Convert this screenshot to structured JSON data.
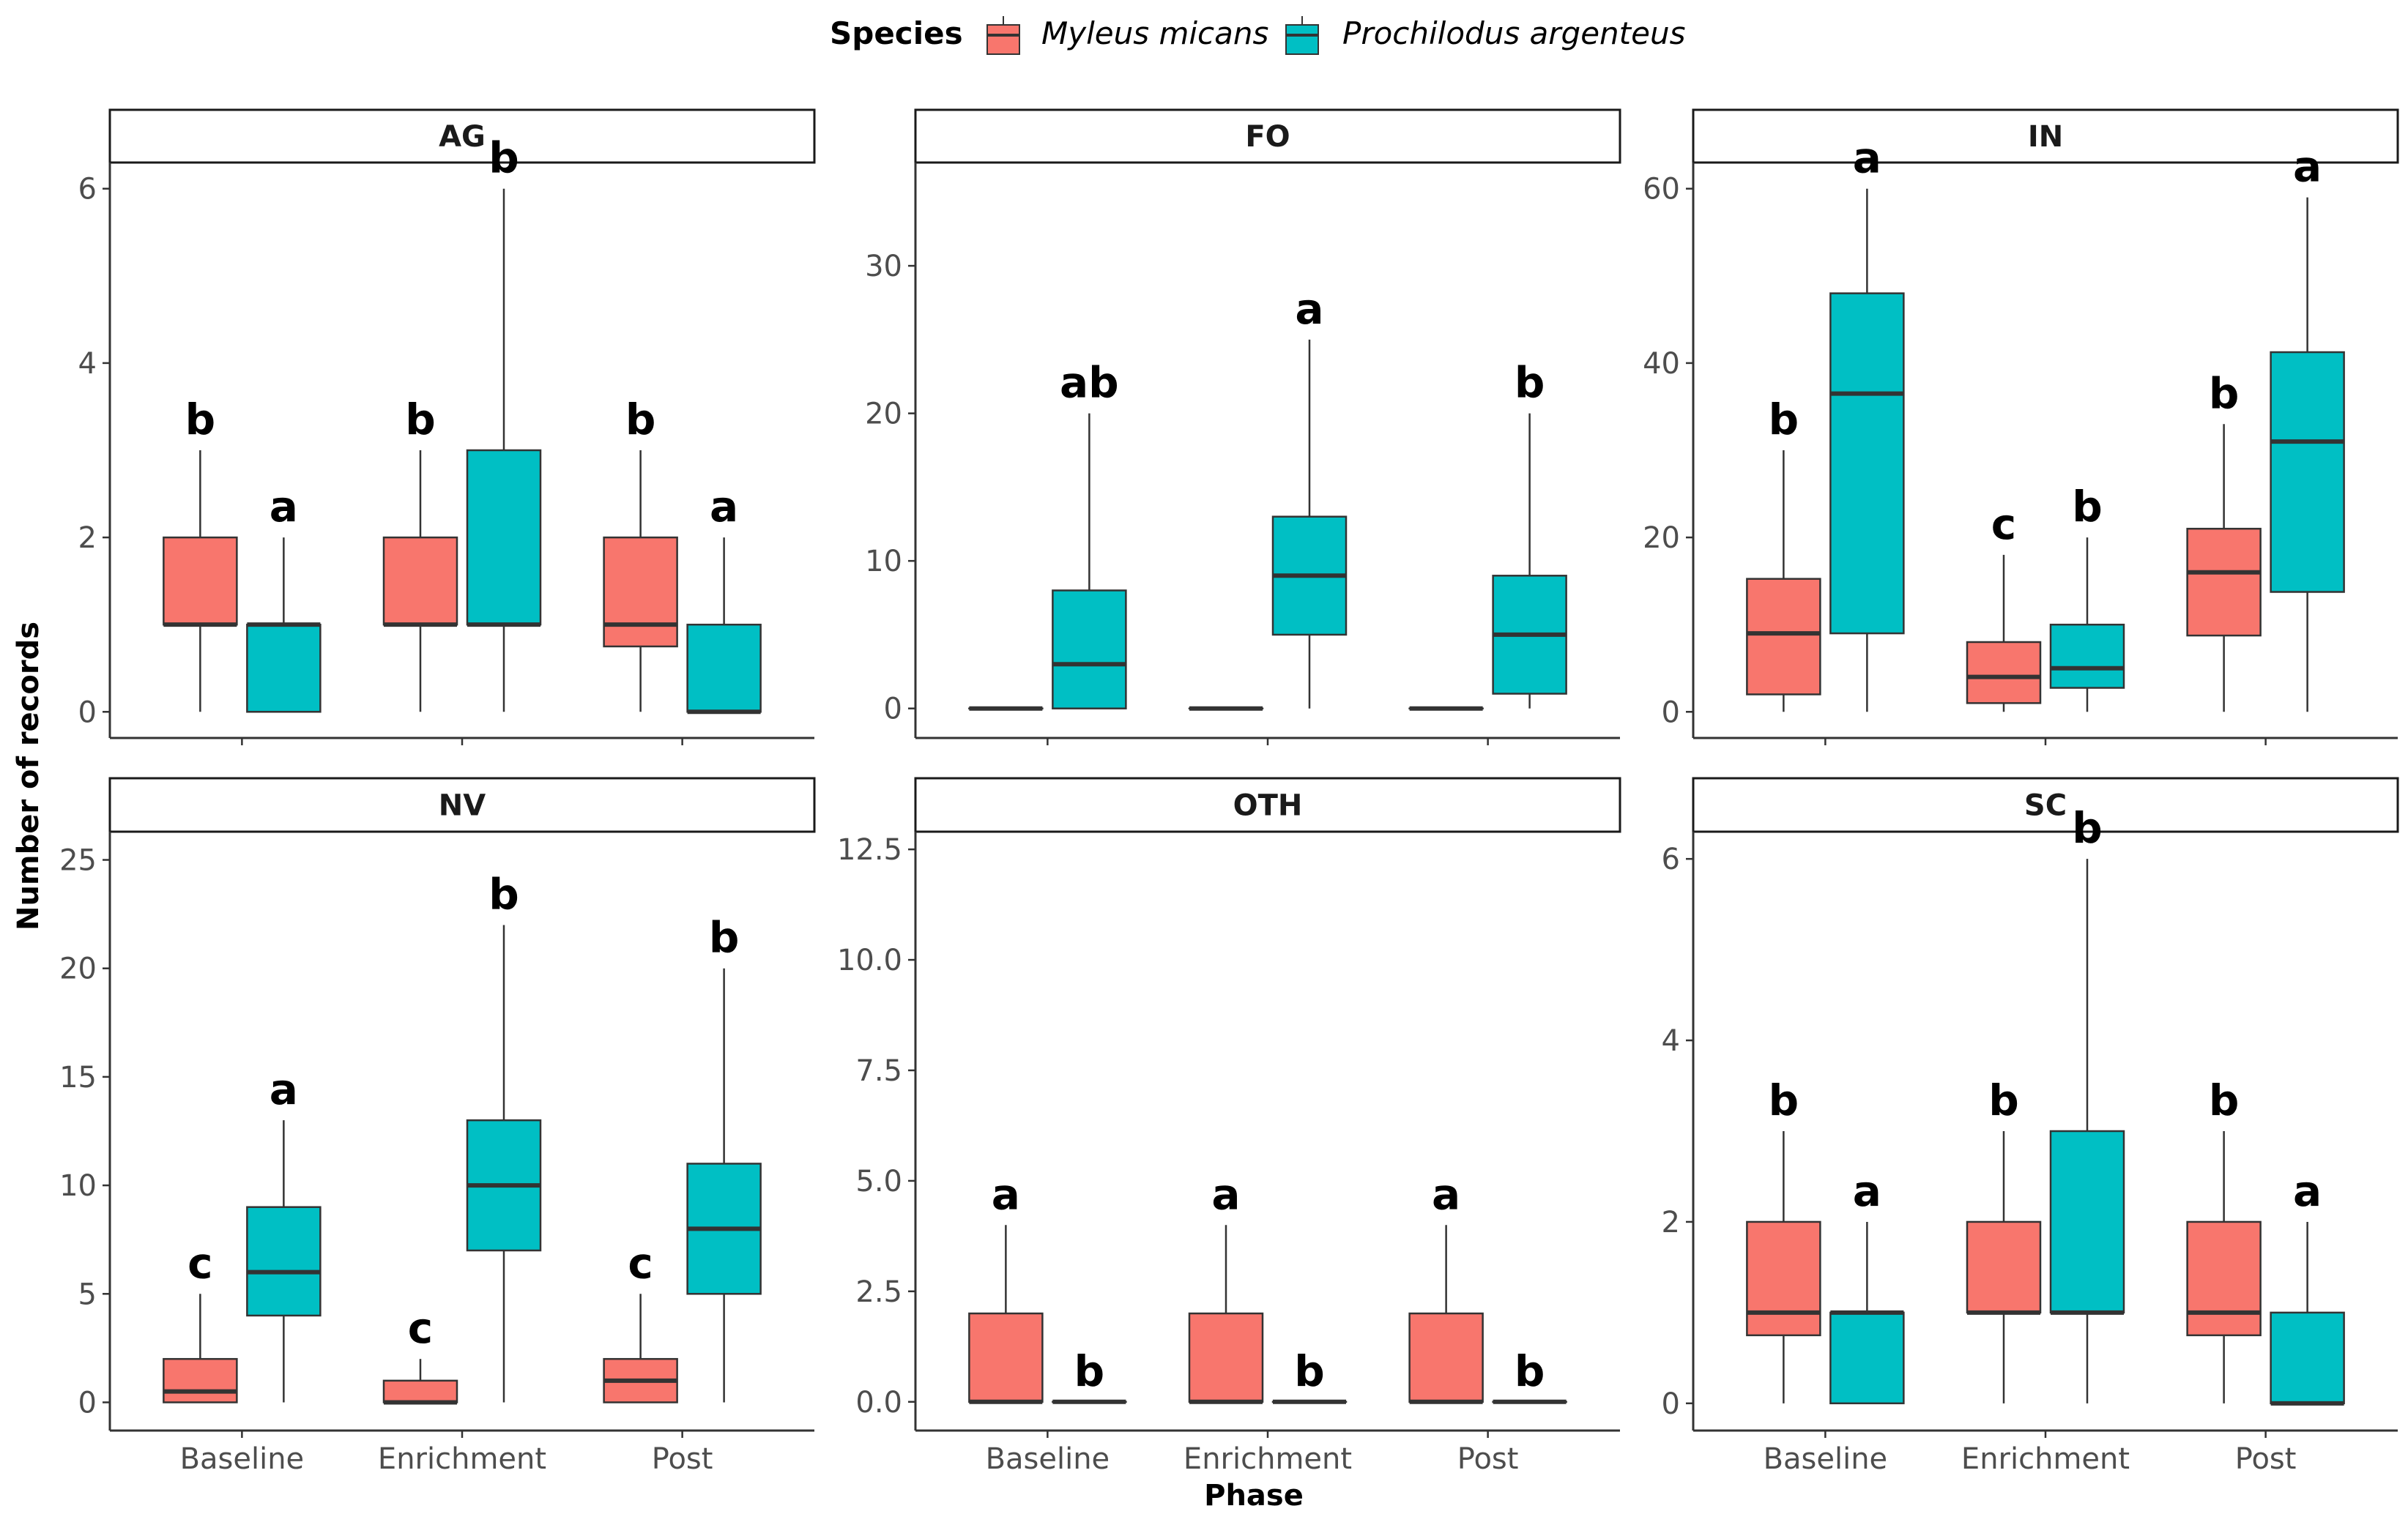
{
  "chart_data": {
    "type": "boxplot",
    "xlabel": "Phase",
    "ylabel": "Number of records",
    "categories": [
      "Baseline",
      "Enrichment",
      "Post"
    ],
    "legend": {
      "title": "Species",
      "position": "top",
      "entries": [
        {
          "name": "Myleus micans",
          "color": "#F8766D"
        },
        {
          "name": "Prochilodus argenteus",
          "color": "#00BFC4"
        }
      ]
    },
    "panels": [
      {
        "name": "AG",
        "ylim": [
          -0.3,
          6.3
        ],
        "yticks": [
          0,
          2,
          4,
          6
        ],
        "tick_labels": [
          "0",
          "2",
          "4",
          "6"
        ],
        "groups": [
          {
            "category": "Baseline",
            "boxes": [
              {
                "species": "Myleus micans",
                "min": 0,
                "q1": 1,
                "median": 1,
                "q3": 2,
                "max": 3,
                "letter": "b"
              },
              {
                "species": "Prochilodus argenteus",
                "min": 0,
                "q1": 0,
                "median": 1,
                "q3": 1,
                "max": 2,
                "letter": "a"
              }
            ]
          },
          {
            "category": "Enrichment",
            "boxes": [
              {
                "species": "Myleus micans",
                "min": 0,
                "q1": 1,
                "median": 1,
                "q3": 2,
                "max": 3,
                "letter": "b"
              },
              {
                "species": "Prochilodus argenteus",
                "min": 0,
                "q1": 1,
                "median": 1,
                "q3": 3,
                "max": 6,
                "letter": "b"
              }
            ]
          },
          {
            "category": "Post",
            "boxes": [
              {
                "species": "Myleus micans",
                "min": 0,
                "q1": 0.75,
                "median": 1,
                "q3": 2,
                "max": 3,
                "letter": "b"
              },
              {
                "species": "Prochilodus argenteus",
                "min": 0,
                "q1": 0,
                "median": 0,
                "q3": 1,
                "max": 2,
                "letter": "a"
              }
            ]
          }
        ]
      },
      {
        "name": "FO",
        "ylim": [
          -2,
          37
        ],
        "yticks": [
          0,
          10,
          20,
          30
        ],
        "tick_labels": [
          "0",
          "10",
          "20",
          "30"
        ],
        "groups": [
          {
            "category": "Baseline",
            "boxes": [
              {
                "species": "Myleus micans",
                "min": 0,
                "q1": 0,
                "median": 0,
                "q3": 0,
                "max": 0,
                "letter": ""
              },
              {
                "species": "Prochilodus argenteus",
                "min": 0,
                "q1": 0,
                "median": 3,
                "q3": 8,
                "max": 20,
                "letter": "ab"
              }
            ]
          },
          {
            "category": "Enrichment",
            "boxes": [
              {
                "species": "Myleus micans",
                "min": 0,
                "q1": 0,
                "median": 0,
                "q3": 0,
                "max": 0,
                "letter": ""
              },
              {
                "species": "Prochilodus argenteus",
                "min": 0,
                "q1": 5,
                "median": 9,
                "q3": 13,
                "max": 25,
                "letter": "a"
              }
            ]
          },
          {
            "category": "Post",
            "boxes": [
              {
                "species": "Myleus micans",
                "min": 0,
                "q1": 0,
                "median": 0,
                "q3": 0,
                "max": 0,
                "letter": ""
              },
              {
                "species": "Prochilodus argenteus",
                "min": 0,
                "q1": 1,
                "median": 5,
                "q3": 9,
                "max": 20,
                "letter": "b"
              }
            ]
          }
        ]
      },
      {
        "name": "IN",
        "ylim": [
          -3,
          63
        ],
        "yticks": [
          0,
          20,
          40,
          60
        ],
        "tick_labels": [
          "0",
          "20",
          "40",
          "60"
        ],
        "groups": [
          {
            "category": "Baseline",
            "boxes": [
              {
                "species": "Myleus micans",
                "min": 0,
                "q1": 2,
                "median": 9,
                "q3": 15.25,
                "max": 30,
                "letter": "b"
              },
              {
                "species": "Prochilodus argenteus",
                "min": 0,
                "q1": 9,
                "median": 36.5,
                "q3": 48,
                "max": 60,
                "letter": "a"
              }
            ]
          },
          {
            "category": "Enrichment",
            "boxes": [
              {
                "species": "Myleus micans",
                "min": 0,
                "q1": 1,
                "median": 4,
                "q3": 8,
                "max": 18,
                "letter": "c"
              },
              {
                "species": "Prochilodus argenteus",
                "min": 0,
                "q1": 2.75,
                "median": 5,
                "q3": 10,
                "max": 20,
                "letter": "b"
              }
            ]
          },
          {
            "category": "Post",
            "boxes": [
              {
                "species": "Myleus micans",
                "min": 0,
                "q1": 8.75,
                "median": 16,
                "q3": 21,
                "max": 33,
                "letter": "b"
              },
              {
                "species": "Prochilodus argenteus",
                "min": 0,
                "q1": 13.75,
                "median": 31,
                "q3": 41.25,
                "max": 59,
                "letter": "a"
              }
            ]
          }
        ]
      },
      {
        "name": "NV",
        "ylim": [
          -1.3,
          26.3
        ],
        "yticks": [
          0,
          5,
          10,
          15,
          20,
          25
        ],
        "tick_labels": [
          "0",
          "5",
          "10",
          "15",
          "20",
          "25"
        ],
        "groups": [
          {
            "category": "Baseline",
            "boxes": [
              {
                "species": "Myleus micans",
                "min": 0,
                "q1": 0,
                "median": 0.5,
                "q3": 2,
                "max": 5,
                "letter": "c"
              },
              {
                "species": "Prochilodus argenteus",
                "min": 0,
                "q1": 4,
                "median": 6,
                "q3": 9,
                "max": 13,
                "letter": "a"
              }
            ]
          },
          {
            "category": "Enrichment",
            "boxes": [
              {
                "species": "Myleus micans",
                "min": 0,
                "q1": 0,
                "median": 0,
                "q3": 1,
                "max": 2,
                "letter": "c"
              },
              {
                "species": "Prochilodus argenteus",
                "min": 0,
                "q1": 7,
                "median": 10,
                "q3": 13,
                "max": 22,
                "letter": "b"
              }
            ]
          },
          {
            "category": "Post",
            "boxes": [
              {
                "species": "Myleus micans",
                "min": 0,
                "q1": 0,
                "median": 1,
                "q3": 2,
                "max": 5,
                "letter": "c"
              },
              {
                "species": "Prochilodus argenteus",
                "min": 0,
                "q1": 5,
                "median": 8,
                "q3": 11,
                "max": 20,
                "letter": "b"
              }
            ]
          }
        ]
      },
      {
        "name": "OTH",
        "ylim": [
          -0.65,
          12.9
        ],
        "yticks": [
          0,
          2.5,
          5,
          7.5,
          10,
          12.5
        ],
        "tick_labels": [
          "0.0",
          "2.5",
          "5.0",
          "7.5",
          "10.0",
          "12.5"
        ],
        "groups": [
          {
            "category": "Baseline",
            "boxes": [
              {
                "species": "Myleus micans",
                "min": 0,
                "q1": 0,
                "median": 0,
                "q3": 2,
                "max": 4,
                "letter": "a"
              },
              {
                "species": "Prochilodus argenteus",
                "min": 0,
                "q1": 0,
                "median": 0,
                "q3": 0,
                "max": 0,
                "letter": "b"
              }
            ]
          },
          {
            "category": "Enrichment",
            "boxes": [
              {
                "species": "Myleus micans",
                "min": 0,
                "q1": 0,
                "median": 0,
                "q3": 2,
                "max": 4,
                "letter": "a"
              },
              {
                "species": "Prochilodus argenteus",
                "min": 0,
                "q1": 0,
                "median": 0,
                "q3": 0,
                "max": 0,
                "letter": "b"
              }
            ]
          },
          {
            "category": "Post",
            "boxes": [
              {
                "species": "Myleus micans",
                "min": 0,
                "q1": 0,
                "median": 0,
                "q3": 2,
                "max": 4,
                "letter": "a"
              },
              {
                "species": "Prochilodus argenteus",
                "min": 0,
                "q1": 0,
                "median": 0,
                "q3": 0,
                "max": 0,
                "letter": "b"
              }
            ]
          }
        ]
      },
      {
        "name": "SC",
        "ylim": [
          -0.3,
          6.3
        ],
        "yticks": [
          0,
          2,
          4,
          6
        ],
        "tick_labels": [
          "0",
          "2",
          "4",
          "6"
        ],
        "groups": [
          {
            "category": "Baseline",
            "boxes": [
              {
                "species": "Myleus micans",
                "min": 0,
                "q1": 0.75,
                "median": 1,
                "q3": 2,
                "max": 3,
                "letter": "b"
              },
              {
                "species": "Prochilodus argenteus",
                "min": 0,
                "q1": 0,
                "median": 1,
                "q3": 1,
                "max": 2,
                "letter": "a"
              }
            ]
          },
          {
            "category": "Enrichment",
            "boxes": [
              {
                "species": "Myleus micans",
                "min": 0,
                "q1": 1,
                "median": 1,
                "q3": 2,
                "max": 3,
                "letter": "b"
              },
              {
                "species": "Prochilodus argenteus",
                "min": 0,
                "q1": 1,
                "median": 1,
                "q3": 3,
                "max": 6,
                "letter": "b"
              }
            ]
          },
          {
            "category": "Post",
            "boxes": [
              {
                "species": "Myleus micans",
                "min": 0,
                "q1": 0.75,
                "median": 1,
                "q3": 2,
                "max": 3,
                "letter": "b"
              },
              {
                "species": "Prochilodus argenteus",
                "min": 0,
                "q1": 0,
                "median": 0,
                "q3": 1,
                "max": 2,
                "letter": "a"
              }
            ]
          }
        ]
      }
    ]
  }
}
